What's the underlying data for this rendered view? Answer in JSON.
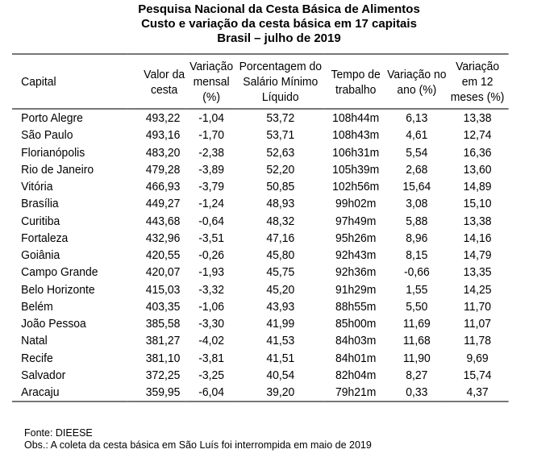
{
  "title": [
    "Pesquisa Nacional da Cesta Básica de Alimentos",
    "Custo e variação da cesta básica em 17 capitais",
    "Brasil – julho de 2019"
  ],
  "headers": [
    "Capital",
    "Valor da cesta",
    "Variação mensal (%)",
    "Porcentagem do Salário Mínimo Líquido",
    "Tempo de trabalho",
    "Variação no ano (%)",
    "Variação em 12 meses (%)"
  ],
  "rows": [
    [
      "Porto Alegre",
      "493,22",
      "-1,04",
      "53,72",
      "108h44m",
      "6,13",
      "13,38"
    ],
    [
      "São Paulo",
      "493,16",
      "-1,70",
      "53,71",
      "108h43m",
      "4,61",
      "12,74"
    ],
    [
      "Florianópolis",
      "483,20",
      "-2,38",
      "52,63",
      "106h31m",
      "5,54",
      "16,36"
    ],
    [
      "Rio de Janeiro",
      "479,28",
      "-3,89",
      "52,20",
      "105h39m",
      "2,68",
      "13,60"
    ],
    [
      "Vitória",
      "466,93",
      "-3,79",
      "50,85",
      "102h56m",
      "15,64",
      "14,89"
    ],
    [
      "Brasília",
      "449,27",
      "-1,24",
      "48,93",
      "99h02m",
      "3,08",
      "15,10"
    ],
    [
      "Curitiba",
      "443,68",
      "-0,64",
      "48,32",
      "97h49m",
      "5,88",
      "13,38"
    ],
    [
      "Fortaleza",
      "432,96",
      "-3,51",
      "47,16",
      "95h26m",
      "8,96",
      "14,16"
    ],
    [
      "Goiânia",
      "420,55",
      "-0,26",
      "45,80",
      "92h43m",
      "8,15",
      "14,79"
    ],
    [
      "Campo Grande",
      "420,07",
      "-1,93",
      "45,75",
      "92h36m",
      "-0,66",
      "13,35"
    ],
    [
      "Belo Horizonte",
      "415,03",
      "-3,32",
      "45,20",
      "91h29m",
      "1,55",
      "14,25"
    ],
    [
      "Belém",
      "403,35",
      "-1,06",
      "43,93",
      "88h55m",
      "5,50",
      "11,70"
    ],
    [
      "João Pessoa",
      "385,58",
      "-3,30",
      "41,99",
      "85h00m",
      "11,69",
      "11,07"
    ],
    [
      "Natal",
      "381,27",
      "-4,02",
      "41,53",
      "84h03m",
      "11,68",
      "11,78"
    ],
    [
      "Recife",
      "381,10",
      "-3,81",
      "41,51",
      "84h01m",
      "11,90",
      "9,69"
    ],
    [
      "Salvador",
      "372,25",
      "-3,25",
      "40,54",
      "82h04m",
      "8,27",
      "15,74"
    ],
    [
      "Aracaju",
      "359,95",
      "-6,04",
      "39,20",
      "79h21m",
      "0,33",
      "4,37"
    ]
  ],
  "source": "Fonte: DIEESE",
  "obs": "Obs.: A coleta da cesta básica em São Luís foi interrompida em maio de 2019"
}
